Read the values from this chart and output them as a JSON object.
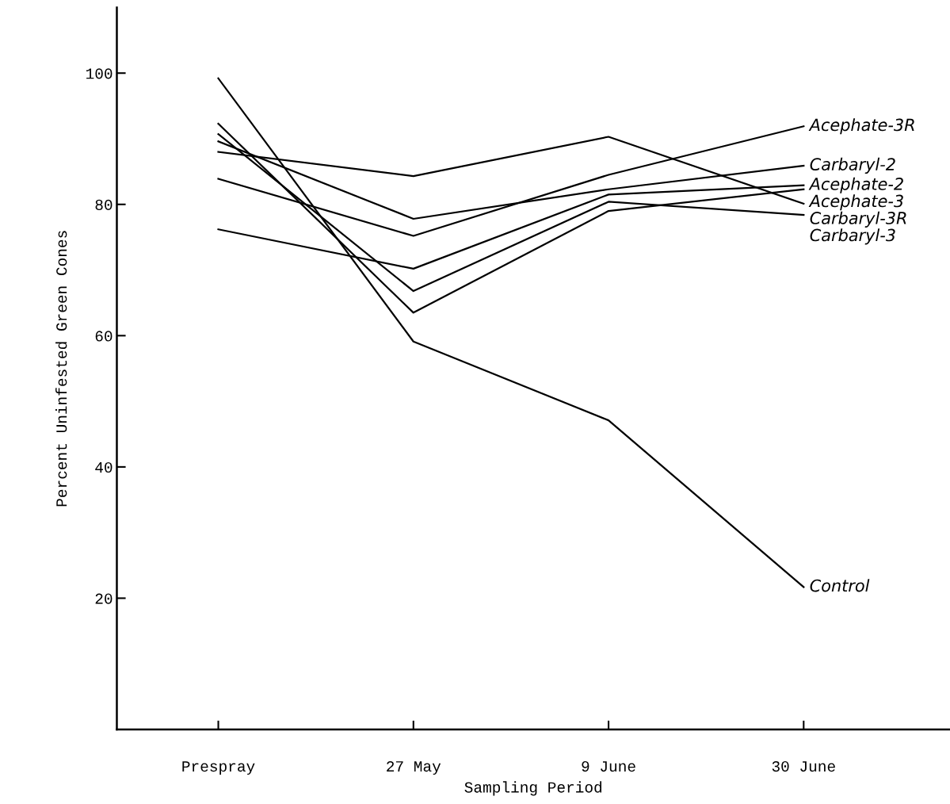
{
  "chart_data": {
    "type": "line",
    "xlabel": "Sampling Period",
    "ylabel": "Percent Uninfested Green Cones",
    "categories": [
      "Prespray",
      "27 May",
      "9 June",
      "30 June"
    ],
    "series": [
      {
        "name": "Acephate-3R",
        "color": "#000000",
        "values": [
          83.9,
          75.2,
          84.5,
          91.9
        ]
      },
      {
        "name": "Carbaryl-2",
        "color": "#000000",
        "values": [
          89.6,
          77.8,
          82.3,
          85.9
        ]
      },
      {
        "name": "Acephate-2",
        "color": "#000000",
        "values": [
          76.2,
          70.2,
          81.5,
          82.9
        ]
      },
      {
        "name": "Acephate-3",
        "color": "#000000",
        "values": [
          92.3,
          63.5,
          79.0,
          82.3
        ]
      },
      {
        "name": "Carbaryl-3R",
        "color": "#000000",
        "values": [
          88.0,
          84.3,
          90.3,
          80.1
        ]
      },
      {
        "name": "Carbaryl-3",
        "color": "#000000",
        "values": [
          90.7,
          66.8,
          80.4,
          78.4
        ]
      },
      {
        "name": "Control",
        "color": "#000000",
        "values": [
          99.2,
          59.1,
          47.1,
          21.7
        ]
      }
    ],
    "ylim": [
      0,
      110
    ],
    "yticks": [
      20,
      40,
      60,
      80,
      100
    ],
    "grid": false,
    "legend": false,
    "marker": "none",
    "line_style": "solid"
  }
}
